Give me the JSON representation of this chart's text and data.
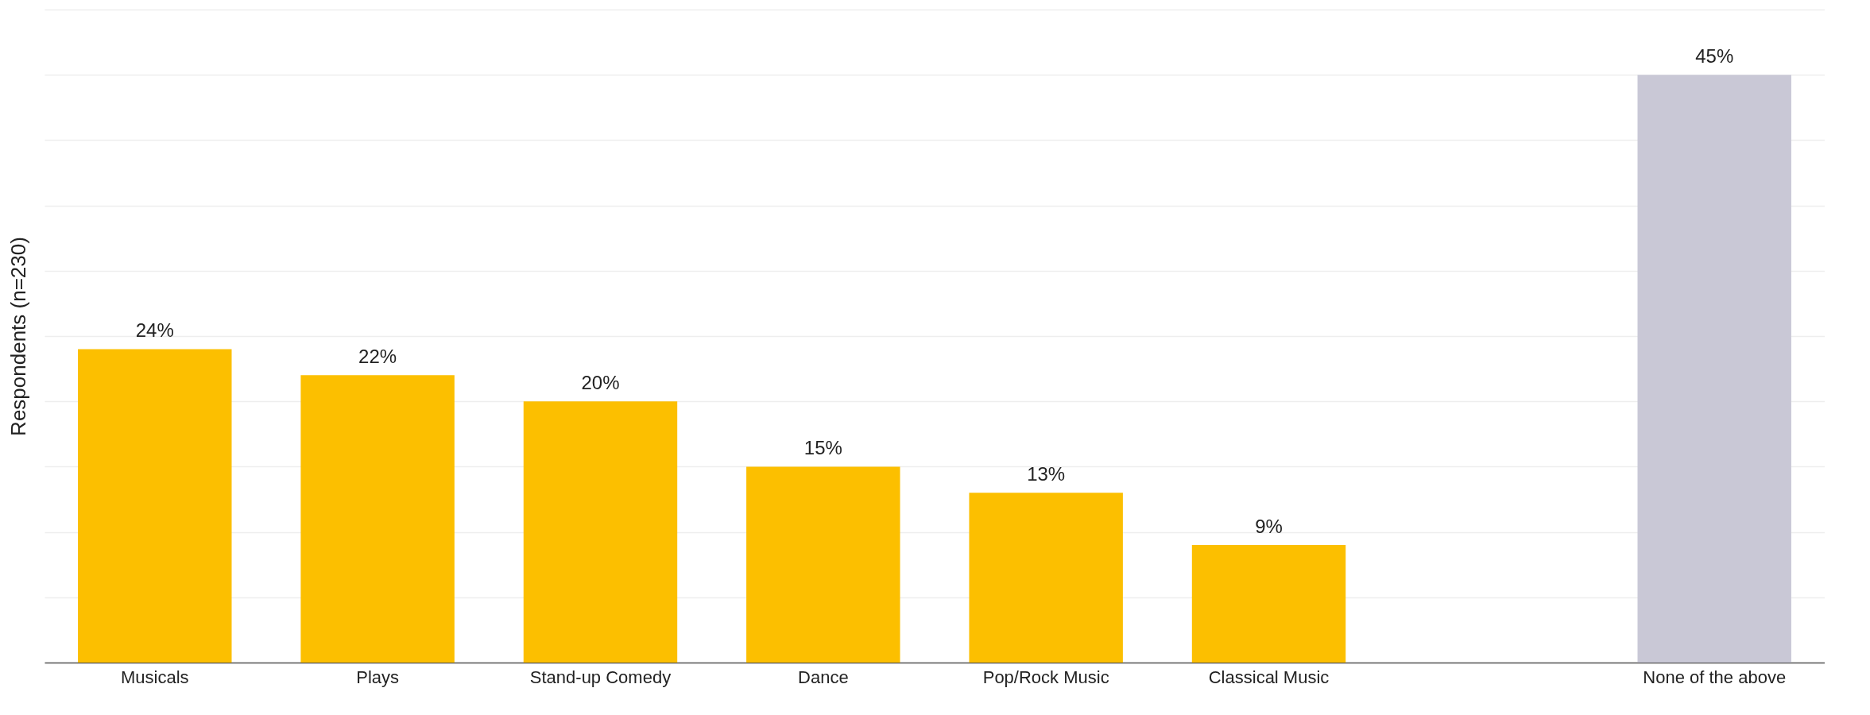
{
  "chart_data": {
    "type": "bar",
    "ylabel": "Respondents (n=230)",
    "categories": [
      "Musicals",
      "Plays",
      "Stand-up Comedy",
      "Dance",
      "Pop/Rock Music",
      "Classical Music",
      null,
      "None of the above"
    ],
    "values": [
      24,
      22,
      20,
      15,
      13,
      9,
      null,
      45
    ],
    "value_labels": [
      "24%",
      "22%",
      "20%",
      "15%",
      "13%",
      "9%",
      null,
      "45%"
    ],
    "colors": [
      "#fcbf00",
      "#fcbf00",
      "#fcbf00",
      "#fcbf00",
      "#fcbf00",
      "#fcbf00",
      null,
      "#c9c8d6"
    ],
    "ylim": [
      0,
      50
    ],
    "yticks": [
      {
        "value": 0,
        "label": null
      },
      {
        "value": 5,
        "label": null
      },
      {
        "value": 10,
        "label": null
      },
      {
        "value": 15,
        "label": null
      },
      {
        "value": 20,
        "label": null
      },
      {
        "value": 25,
        "label": null
      },
      {
        "value": 30,
        "label": null
      },
      {
        "value": 35,
        "label": null
      },
      {
        "value": 40,
        "label": null
      },
      {
        "value": 45,
        "label": null
      },
      {
        "value": 50,
        "label": null
      }
    ],
    "grid": "y",
    "tick_labels": "x"
  }
}
